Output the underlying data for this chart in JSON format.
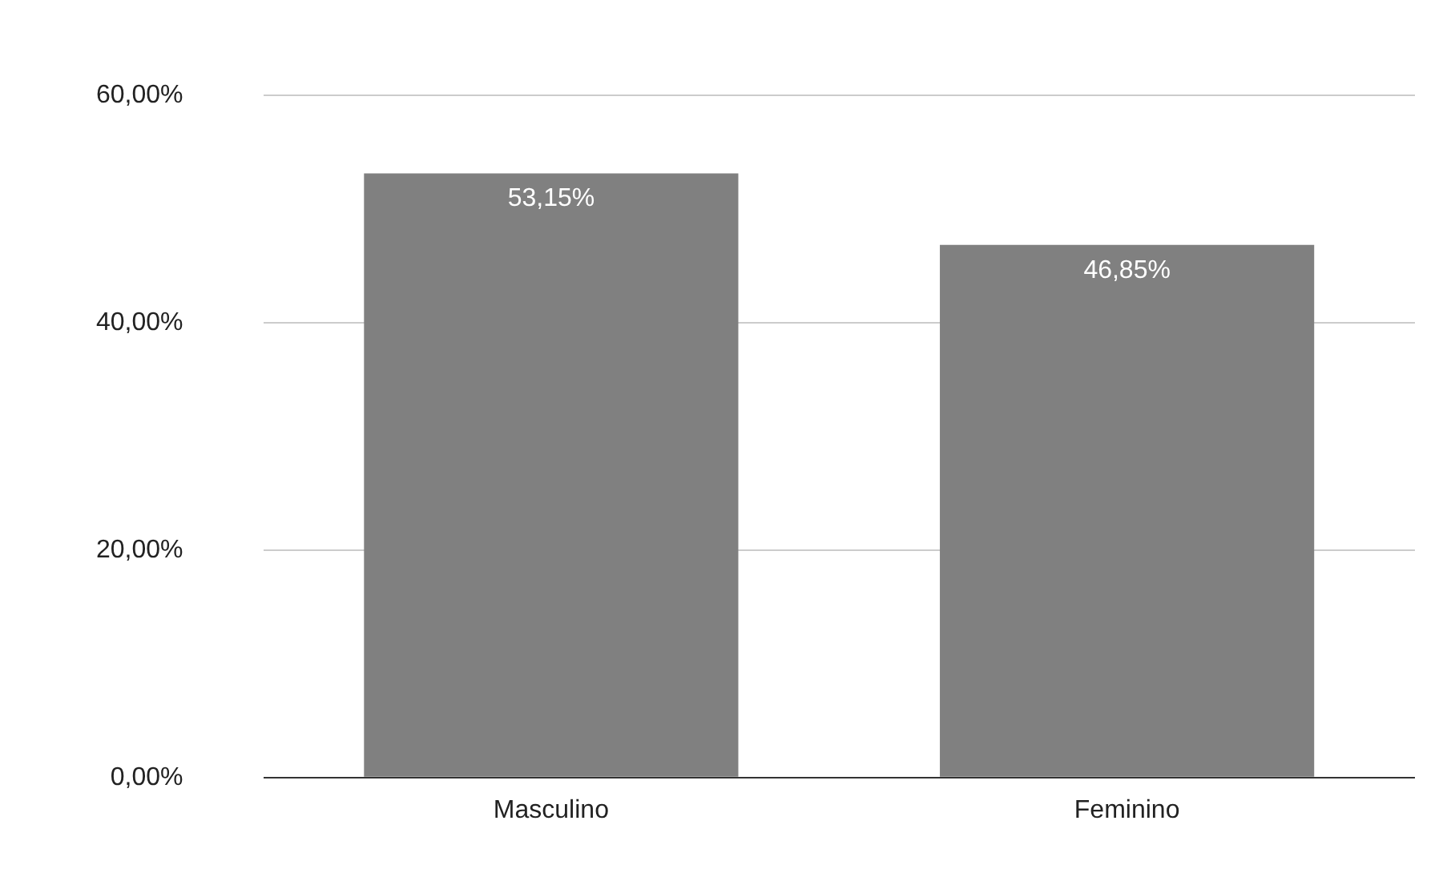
{
  "chart_data": {
    "type": "bar",
    "categories": [
      "Masculino",
      "Feminino"
    ],
    "values": [
      53.15,
      46.85
    ],
    "color": "#808080",
    "value_labels": [
      "53,15%",
      "46,85%"
    ],
    "ylim": [
      0,
      60
    ],
    "yticks": [
      {
        "value": 0,
        "label": "0,00%"
      },
      {
        "value": 20,
        "label": "20,00%"
      },
      {
        "value": 40,
        "label": "40,00%"
      },
      {
        "value": 60,
        "label": "60,00%"
      }
    ],
    "grid": "y",
    "legend": false
  }
}
